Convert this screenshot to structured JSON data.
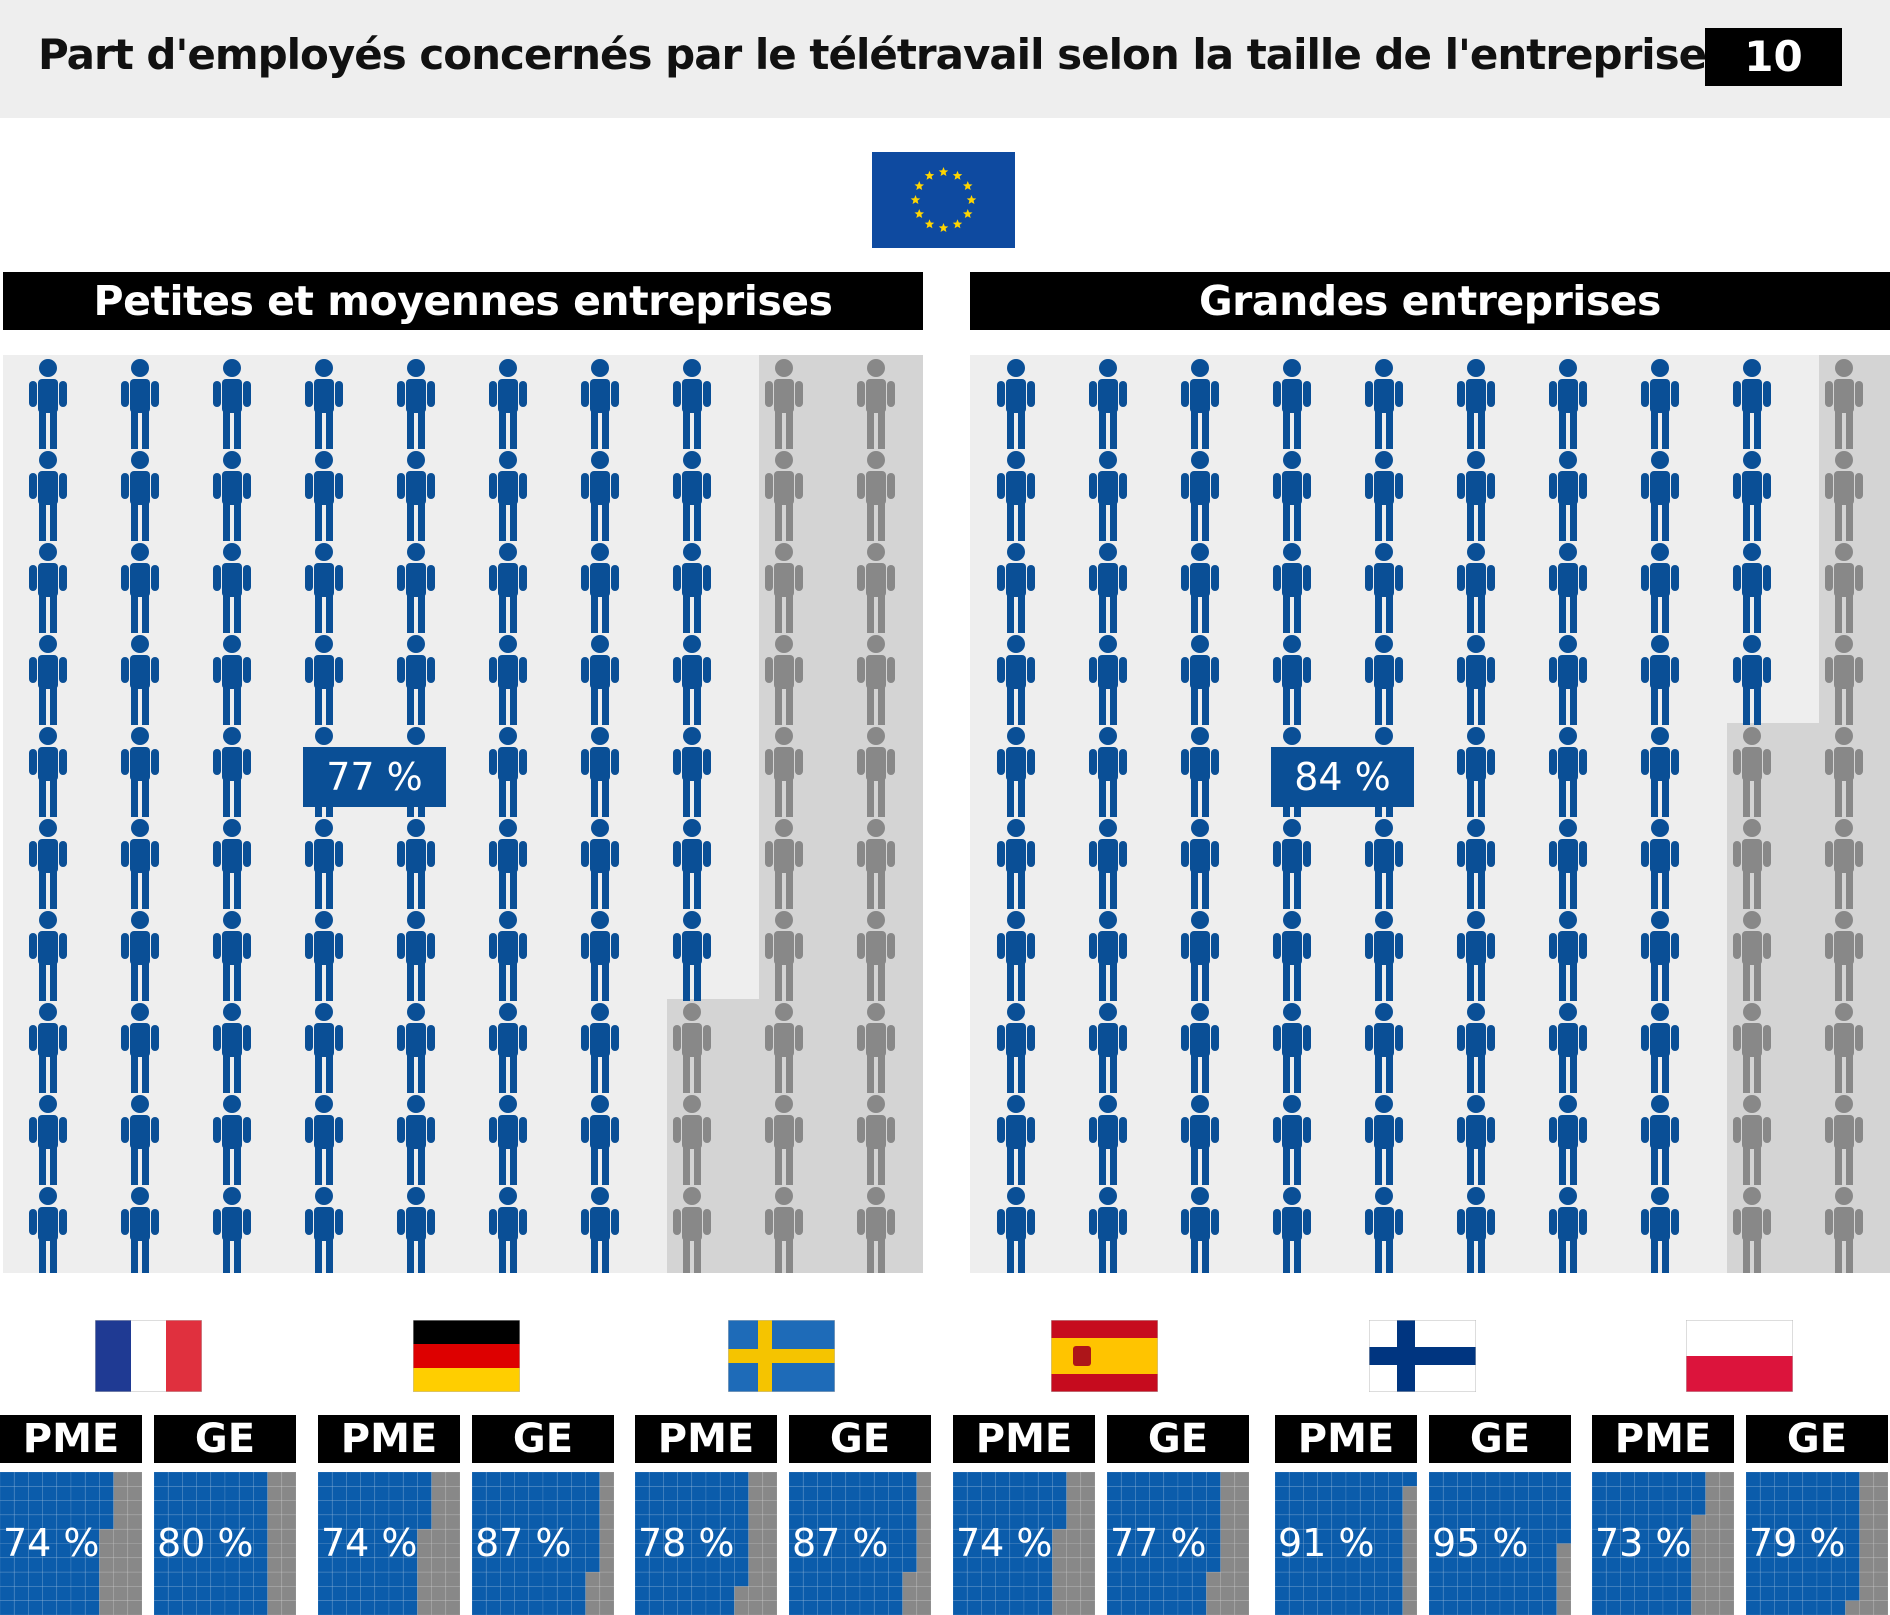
{
  "header": {
    "title": "Part d'employés concernés par le télétravail selon la taille de l'entreprise",
    "page_number": "10"
  },
  "colors": {
    "blue": "#0a4f96",
    "gray": "#888888",
    "panel_bg": "#eeeeee",
    "shade": "#d4d4d4",
    "mini_blue": "#0b5cab"
  },
  "chart_data": [
    {
      "type": "pictogram",
      "region": "EU",
      "panels": [
        {
          "title": "Petites et moyennes entreprises",
          "value": 77,
          "label": "77 %"
        },
        {
          "title": "Grandes entreprises",
          "value": 84,
          "label": "84 %"
        }
      ]
    },
    {
      "type": "waffle",
      "categories": [
        "PME",
        "GE"
      ],
      "countries": [
        {
          "flag": "france-flag",
          "values": [
            74,
            80
          ],
          "labels": [
            "74 %",
            "80 %"
          ]
        },
        {
          "flag": "germany-flag",
          "values": [
            74,
            87
          ],
          "labels": [
            "74 %",
            "87 %"
          ]
        },
        {
          "flag": "sweden-flag",
          "values": [
            78,
            87
          ],
          "labels": [
            "78 %",
            "87 %"
          ]
        },
        {
          "flag": "spain-flag",
          "values": [
            74,
            77
          ],
          "labels": [
            "74 %",
            "77 %"
          ]
        },
        {
          "flag": "finland-flag",
          "values": [
            91,
            95
          ],
          "labels": [
            "91 %",
            "95 %"
          ]
        },
        {
          "flag": "poland-flag",
          "values": [
            73,
            79
          ],
          "labels": [
            "73 %",
            "79 %"
          ]
        }
      ]
    }
  ]
}
